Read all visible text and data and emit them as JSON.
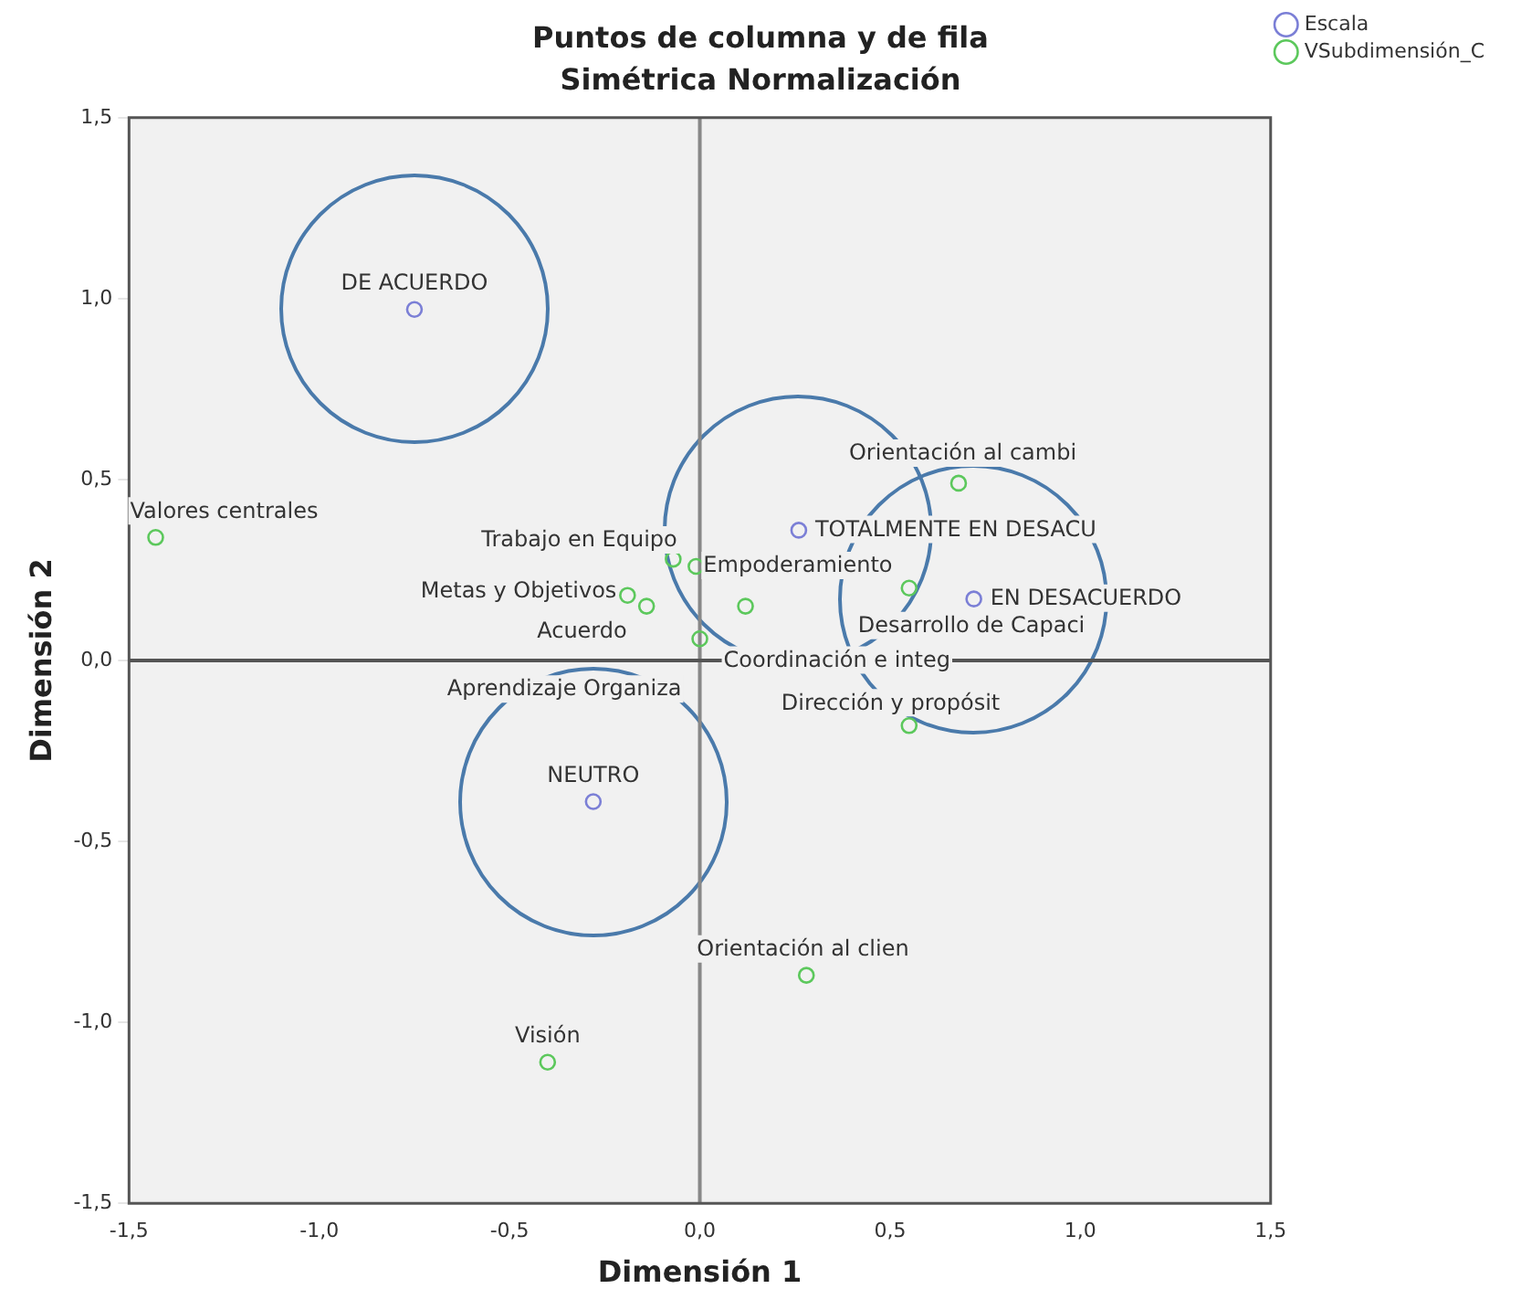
{
  "chart_data": {
    "type": "scatter",
    "title": "Puntos de columna y de fila",
    "subtitle": "Simétrica Normalización",
    "xlabel": "Dimensión 1",
    "ylabel": "Dimensión 2",
    "xlim": [
      -1.5,
      1.5
    ],
    "ylim": [
      -1.5,
      1.5
    ],
    "xticks": [
      {
        "value": -1.5,
        "label": "-1,5"
      },
      {
        "value": -1,
        "label": "-1,0"
      },
      {
        "value": -0.5,
        "label": "-0,5"
      },
      {
        "value": 0,
        "label": "0,0"
      },
      {
        "value": 0.5,
        "label": "0,5"
      },
      {
        "value": 1,
        "label": "1,0"
      },
      {
        "value": 1.5,
        "label": "1,5"
      }
    ],
    "yticks": [
      {
        "value": -1.5,
        "label": "-1,5"
      },
      {
        "value": -1,
        "label": "-1,0"
      },
      {
        "value": -0.5,
        "label": "-0,5"
      },
      {
        "value": 0,
        "label": "0,0"
      },
      {
        "value": 0.5,
        "label": "0,5"
      },
      {
        "value": 1,
        "label": "1,0"
      },
      {
        "value": 1.5,
        "label": "1,5"
      }
    ],
    "series": [
      {
        "name": "Escala",
        "color": "#7b7fd6",
        "x": [
          -0.75,
          0.26,
          0.72,
          -0.28
        ],
        "values": [
          0.97,
          0.36,
          0.17,
          -0.39
        ]
      },
      {
        "name": "VSubdimensión_C",
        "color": "#5cc85c",
        "x": [
          -1.43,
          0.68,
          -0.07,
          -0.01,
          -0.19,
          -0.14,
          0.12,
          0.0,
          0.55,
          0.55,
          0.28,
          -0.4
        ],
        "values": [
          0.34,
          0.49,
          0.28,
          0.26,
          0.18,
          0.15,
          0.15,
          0.06,
          0.2,
          -0.18,
          -0.87,
          -1.11
        ]
      }
    ],
    "annotations": [
      {
        "text": "DE ACUERDO",
        "x": -0.75,
        "y": 0.97
      },
      {
        "text": "TOTALMENTE EN DESACU",
        "x": 0.26,
        "y": 0.36
      },
      {
        "text": "EN DESACUERDO",
        "x": 0.72,
        "y": 0.17
      },
      {
        "text": "NEUTRO",
        "x": -0.28,
        "y": -0.39
      },
      {
        "text": "Valores centrales",
        "x": -1.43,
        "y": 0.34
      },
      {
        "text": "Orientación al cambi",
        "x": 0.68,
        "y": 0.49
      },
      {
        "text": "Trabajo en Equipo",
        "x": -0.07,
        "y": 0.28
      },
      {
        "text": "Empoderamiento",
        "x": -0.01,
        "y": 0.26
      },
      {
        "text": "Metas y Objetivos",
        "x": -0.19,
        "y": 0.18
      },
      {
        "text": "Acuerdo",
        "x": -0.14,
        "y": 0.15
      },
      {
        "text": "Coordinación e integ",
        "x": 0.12,
        "y": 0.15
      },
      {
        "text": "Aprendizaje Organiza",
        "x": 0.0,
        "y": 0.06
      },
      {
        "text": "Desarrollo de Capaci",
        "x": 0.55,
        "y": 0.2
      },
      {
        "text": "Dirección y propósit",
        "x": 0.55,
        "y": -0.18
      },
      {
        "text": "Orientación al clien",
        "x": 0.28,
        "y": -0.87
      },
      {
        "text": "Visión",
        "x": -0.4,
        "y": -1.11
      }
    ],
    "ref_lines": [
      {
        "axis": "x",
        "value": 0,
        "color": "#888888"
      },
      {
        "axis": "y",
        "value": 0,
        "color": "#555555"
      }
    ],
    "grid": false,
    "legend": "top right",
    "marker": "circle"
  }
}
